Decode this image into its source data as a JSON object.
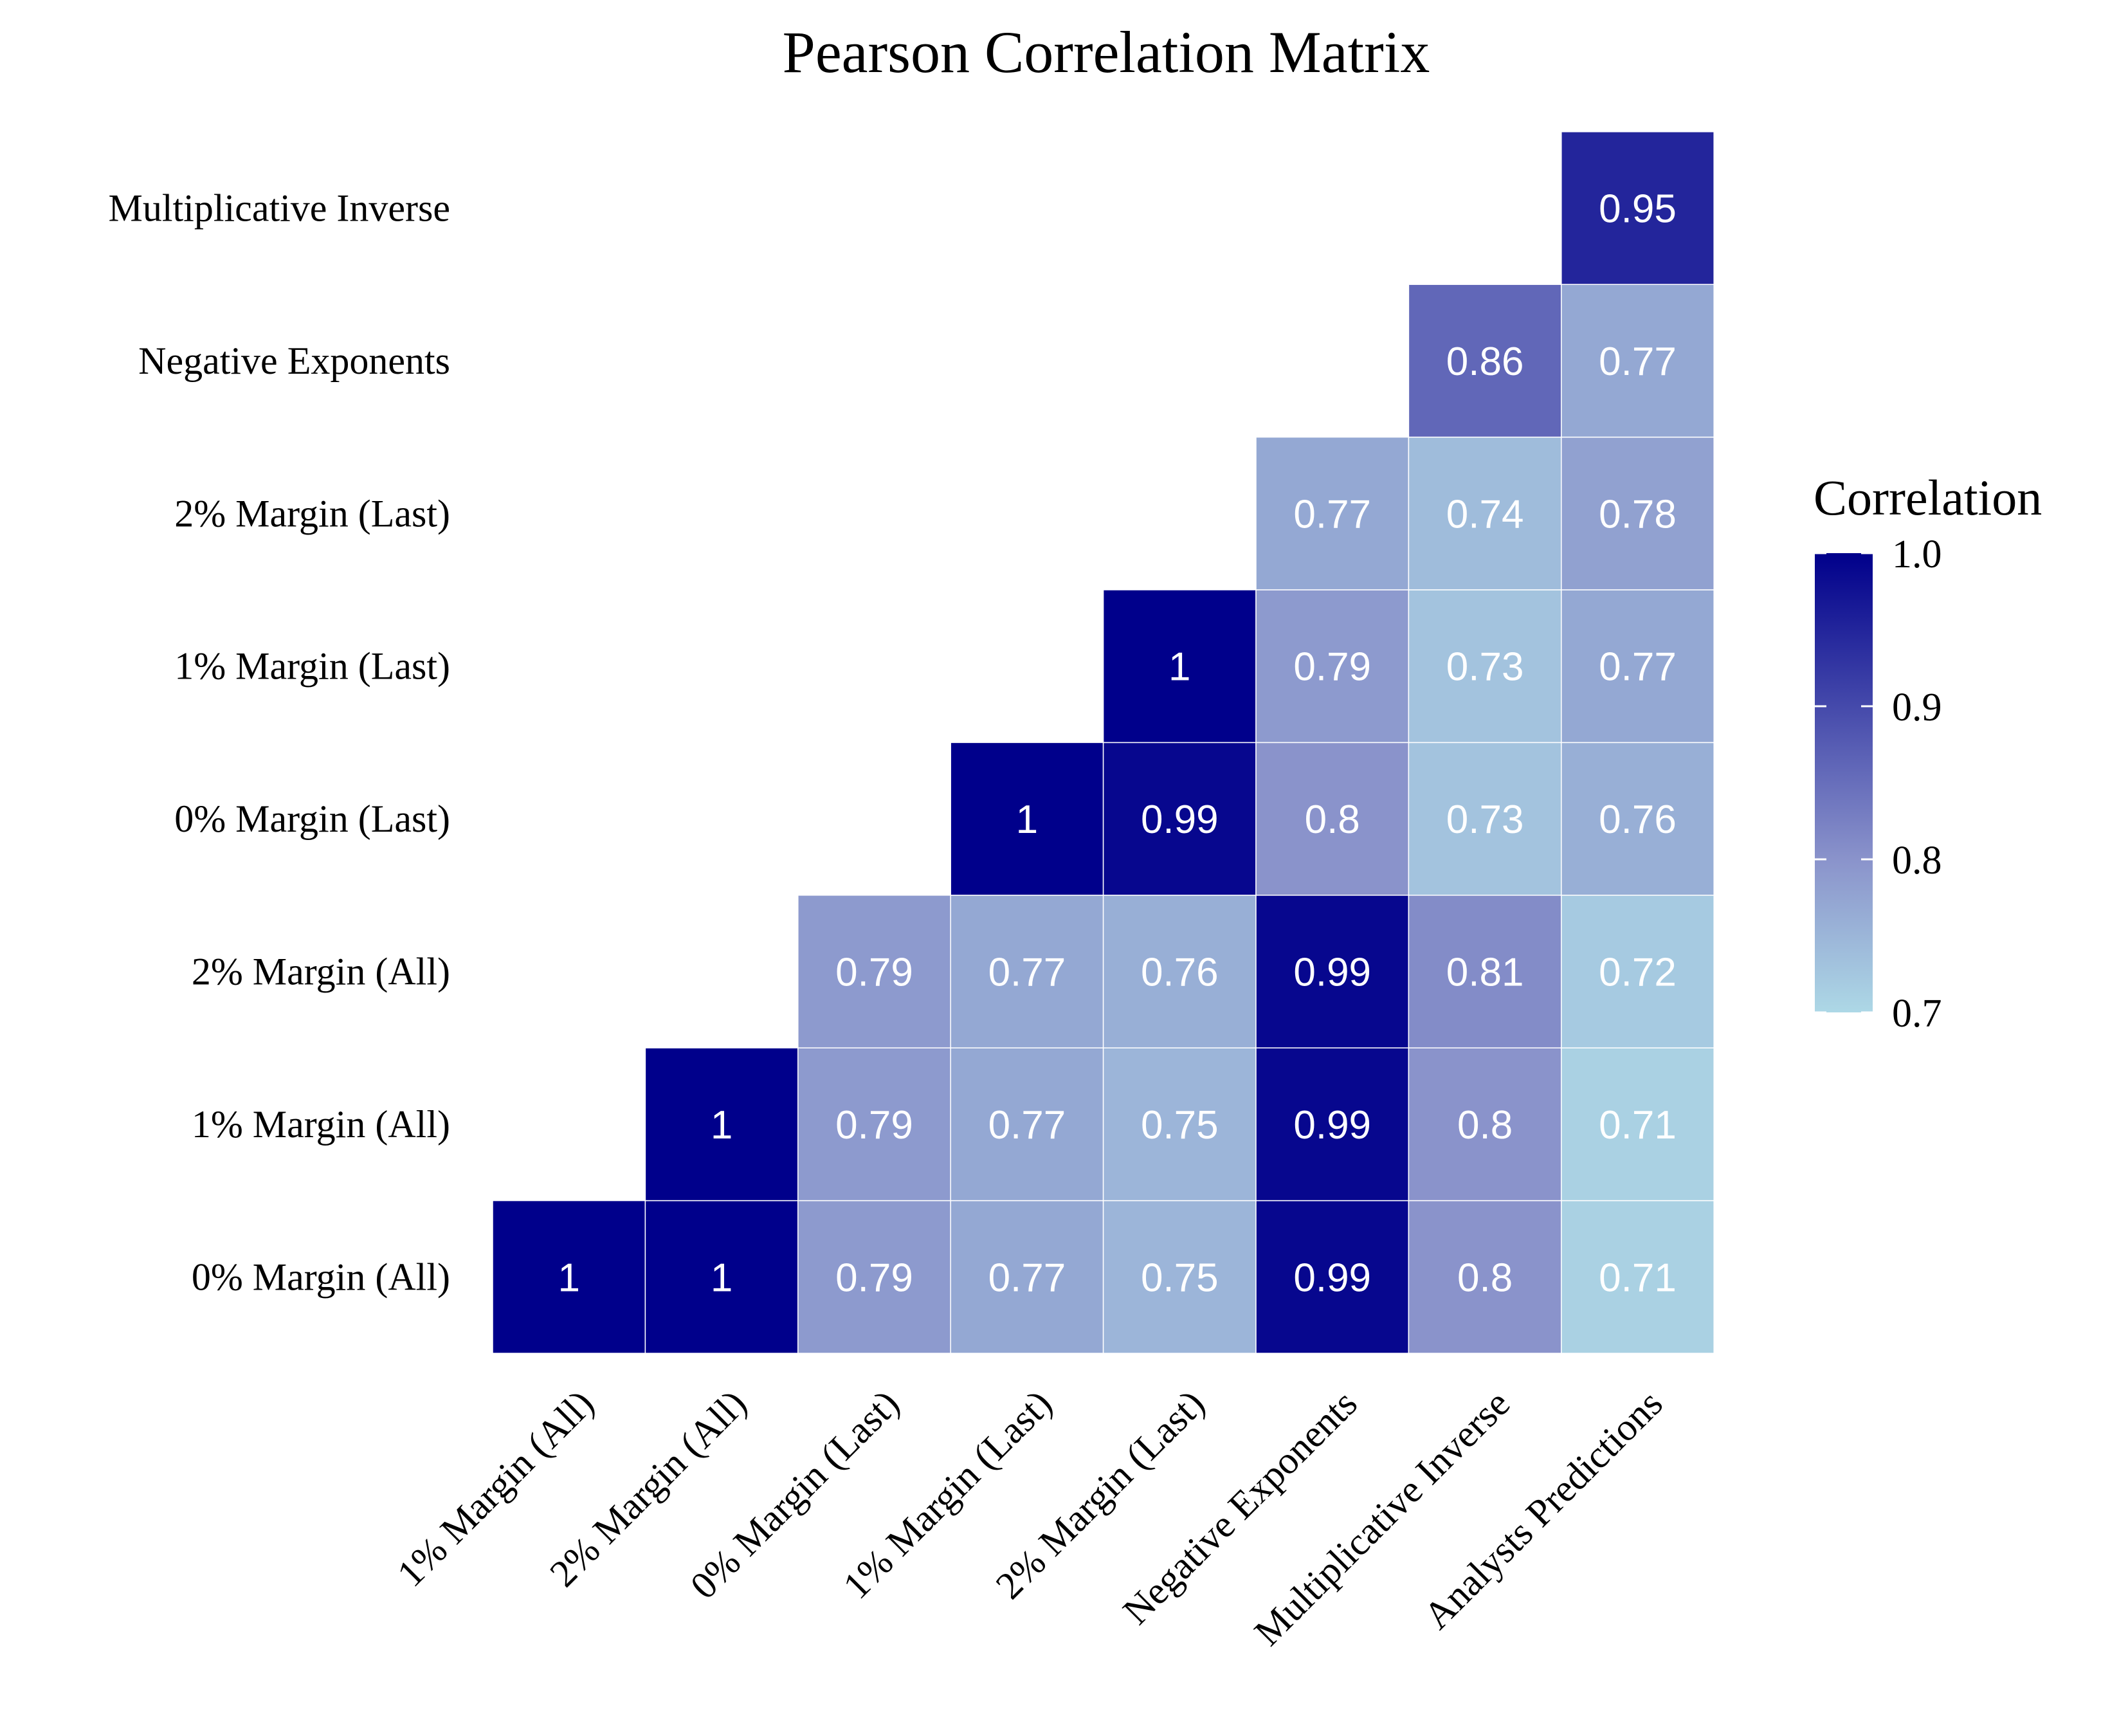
{
  "chart_data": {
    "type": "heatmap",
    "title": "Pearson Correlation Matrix",
    "x_categories": [
      "1% Margin (All)",
      "2% Margin (All)",
      "0% Margin (Last)",
      "1% Margin (Last)",
      "2% Margin (Last)",
      "Negative Exponents",
      "Multiplicative Inverse",
      "Analysts Predictions"
    ],
    "y_categories": [
      "0% Margin (All)",
      "1% Margin (All)",
      "2% Margin (All)",
      "0% Margin (Last)",
      "1% Margin (Last)",
      "2% Margin (Last)",
      "Negative Exponents",
      "Multiplicative Inverse"
    ],
    "cells": [
      {
        "row": "0% Margin (All)",
        "values": [
          1,
          1,
          0.79,
          0.77,
          0.75,
          0.99,
          0.8,
          0.71
        ]
      },
      {
        "row": "1% Margin (All)",
        "values": [
          null,
          1,
          0.79,
          0.77,
          0.75,
          0.99,
          0.8,
          0.71
        ]
      },
      {
        "row": "2% Margin (All)",
        "values": [
          null,
          null,
          0.79,
          0.77,
          0.76,
          0.99,
          0.81,
          0.72
        ]
      },
      {
        "row": "0% Margin (Last)",
        "values": [
          null,
          null,
          null,
          1,
          0.99,
          0.8,
          0.73,
          0.76
        ]
      },
      {
        "row": "1% Margin (Last)",
        "values": [
          null,
          null,
          null,
          null,
          1,
          0.79,
          0.73,
          0.77
        ]
      },
      {
        "row": "2% Margin (Last)",
        "values": [
          null,
          null,
          null,
          null,
          null,
          0.77,
          0.74,
          0.78
        ]
      },
      {
        "row": "Negative Exponents",
        "values": [
          null,
          null,
          null,
          null,
          null,
          null,
          0.86,
          0.77
        ]
      },
      {
        "row": "Multiplicative Inverse",
        "values": [
          null,
          null,
          null,
          null,
          null,
          null,
          null,
          0.95
        ]
      }
    ],
    "color_scale": {
      "title": "Correlation",
      "min": 0.7,
      "max": 1.0,
      "ticks": [
        "0.7",
        "0.8",
        "0.9",
        "1.0"
      ],
      "low_color": "#add8e6",
      "mid_color": "#8a93cb",
      "high_color": "#00008b"
    },
    "cell_label_color": "#ffffff",
    "legend_position": "right"
  }
}
